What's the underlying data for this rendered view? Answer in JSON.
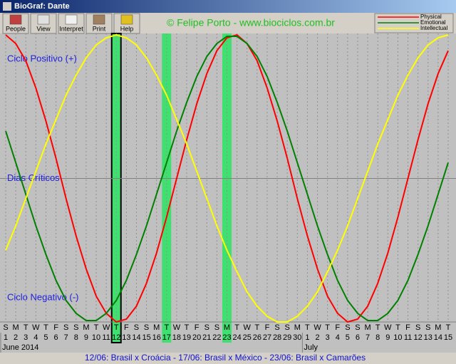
{
  "window": {
    "title": "BioGraf: Dante"
  },
  "toolbar": {
    "buttons": [
      "People",
      "View",
      "Interpret",
      "Print",
      "Help"
    ]
  },
  "copyright": "© Felipe Porto - www.biociclos.com.br",
  "chart_data": {
    "type": "line",
    "annotations": [
      "Ciclo Positivo (+)",
      "Dias Críticos",
      "Ciclo Negativo (-)"
    ],
    "categories": [
      "1",
      "2",
      "3",
      "4",
      "5",
      "6",
      "7",
      "8",
      "9",
      "10",
      "11",
      "12",
      "13",
      "14",
      "15",
      "16",
      "17",
      "18",
      "19",
      "20",
      "21",
      "22",
      "23",
      "24",
      "25",
      "26",
      "27",
      "28",
      "29",
      "30",
      "1",
      "2",
      "3",
      "4",
      "5",
      "6",
      "7",
      "8",
      "9",
      "10",
      "11",
      "12",
      "13",
      "14",
      "15"
    ],
    "weekdays": [
      "S",
      "M",
      "T",
      "W",
      "T",
      "F",
      "S",
      "S",
      "M",
      "T",
      "W",
      "T",
      "F",
      "S",
      "S",
      "M",
      "T",
      "W",
      "T",
      "F",
      "S",
      "S",
      "M",
      "T",
      "W",
      "T",
      "F",
      "S",
      "S",
      "M",
      "T",
      "W",
      "T",
      "F",
      "S",
      "S",
      "M",
      "T",
      "W",
      "T",
      "F",
      "S",
      "S",
      "M",
      "T"
    ],
    "months": [
      "June 2014",
      null,
      null,
      null,
      null,
      null,
      null,
      null,
      null,
      null,
      null,
      null,
      null,
      null,
      null,
      null,
      null,
      null,
      null,
      null,
      null,
      null,
      null,
      null,
      null,
      null,
      null,
      null,
      null,
      null,
      "July",
      null,
      null,
      null,
      null,
      null,
      null,
      null,
      null,
      null,
      null,
      null,
      null,
      null,
      null
    ],
    "highlighted": [
      11,
      16,
      22
    ],
    "selected": 11,
    "ylim": [
      -100,
      100
    ],
    "series": [
      {
        "name": "Physical",
        "color": "#ff0000",
        "values": [
          100,
          94,
          82,
          63,
          40,
          14,
          -14,
          -40,
          -63,
          -82,
          -94,
          -100,
          -98,
          -89,
          -73,
          -52,
          -27,
          0,
          27,
          52,
          73,
          89,
          98,
          100,
          94,
          82,
          63,
          40,
          14,
          -14,
          -40,
          -63,
          -82,
          -94,
          -100,
          -98,
          -89,
          -73,
          -52,
          -27,
          0,
          27,
          52,
          73,
          89
        ]
      },
      {
        "name": "Emotional",
        "color": "#008000",
        "values": [
          33,
          11,
          -11,
          -33,
          -53,
          -71,
          -85,
          -94,
          -99,
          -99,
          -94,
          -85,
          -71,
          -53,
          -33,
          -11,
          11,
          33,
          53,
          71,
          85,
          94,
          99,
          99,
          94,
          85,
          71,
          53,
          33,
          11,
          -11,
          -33,
          -53,
          -71,
          -85,
          -94,
          -99,
          -99,
          -94,
          -85,
          -71,
          -53,
          -33,
          -11,
          11
        ]
      },
      {
        "name": "Intellectual",
        "color": "#ffff00",
        "values": [
          -50,
          -33,
          -14,
          5,
          24,
          41,
          58,
          72,
          84,
          93,
          98,
          100,
          98,
          93,
          84,
          72,
          58,
          41,
          24,
          5,
          -14,
          -33,
          -50,
          -65,
          -79,
          -89,
          -96,
          -100,
          -100,
          -96,
          -89,
          -79,
          -65,
          -50,
          -33,
          -14,
          5,
          24,
          41,
          58,
          72,
          84,
          93,
          98,
          100
        ]
      }
    ]
  },
  "status": "12/06: Brasil x Croácia - 17/06: Brasil x México - 23/06: Brasil x Camarões"
}
